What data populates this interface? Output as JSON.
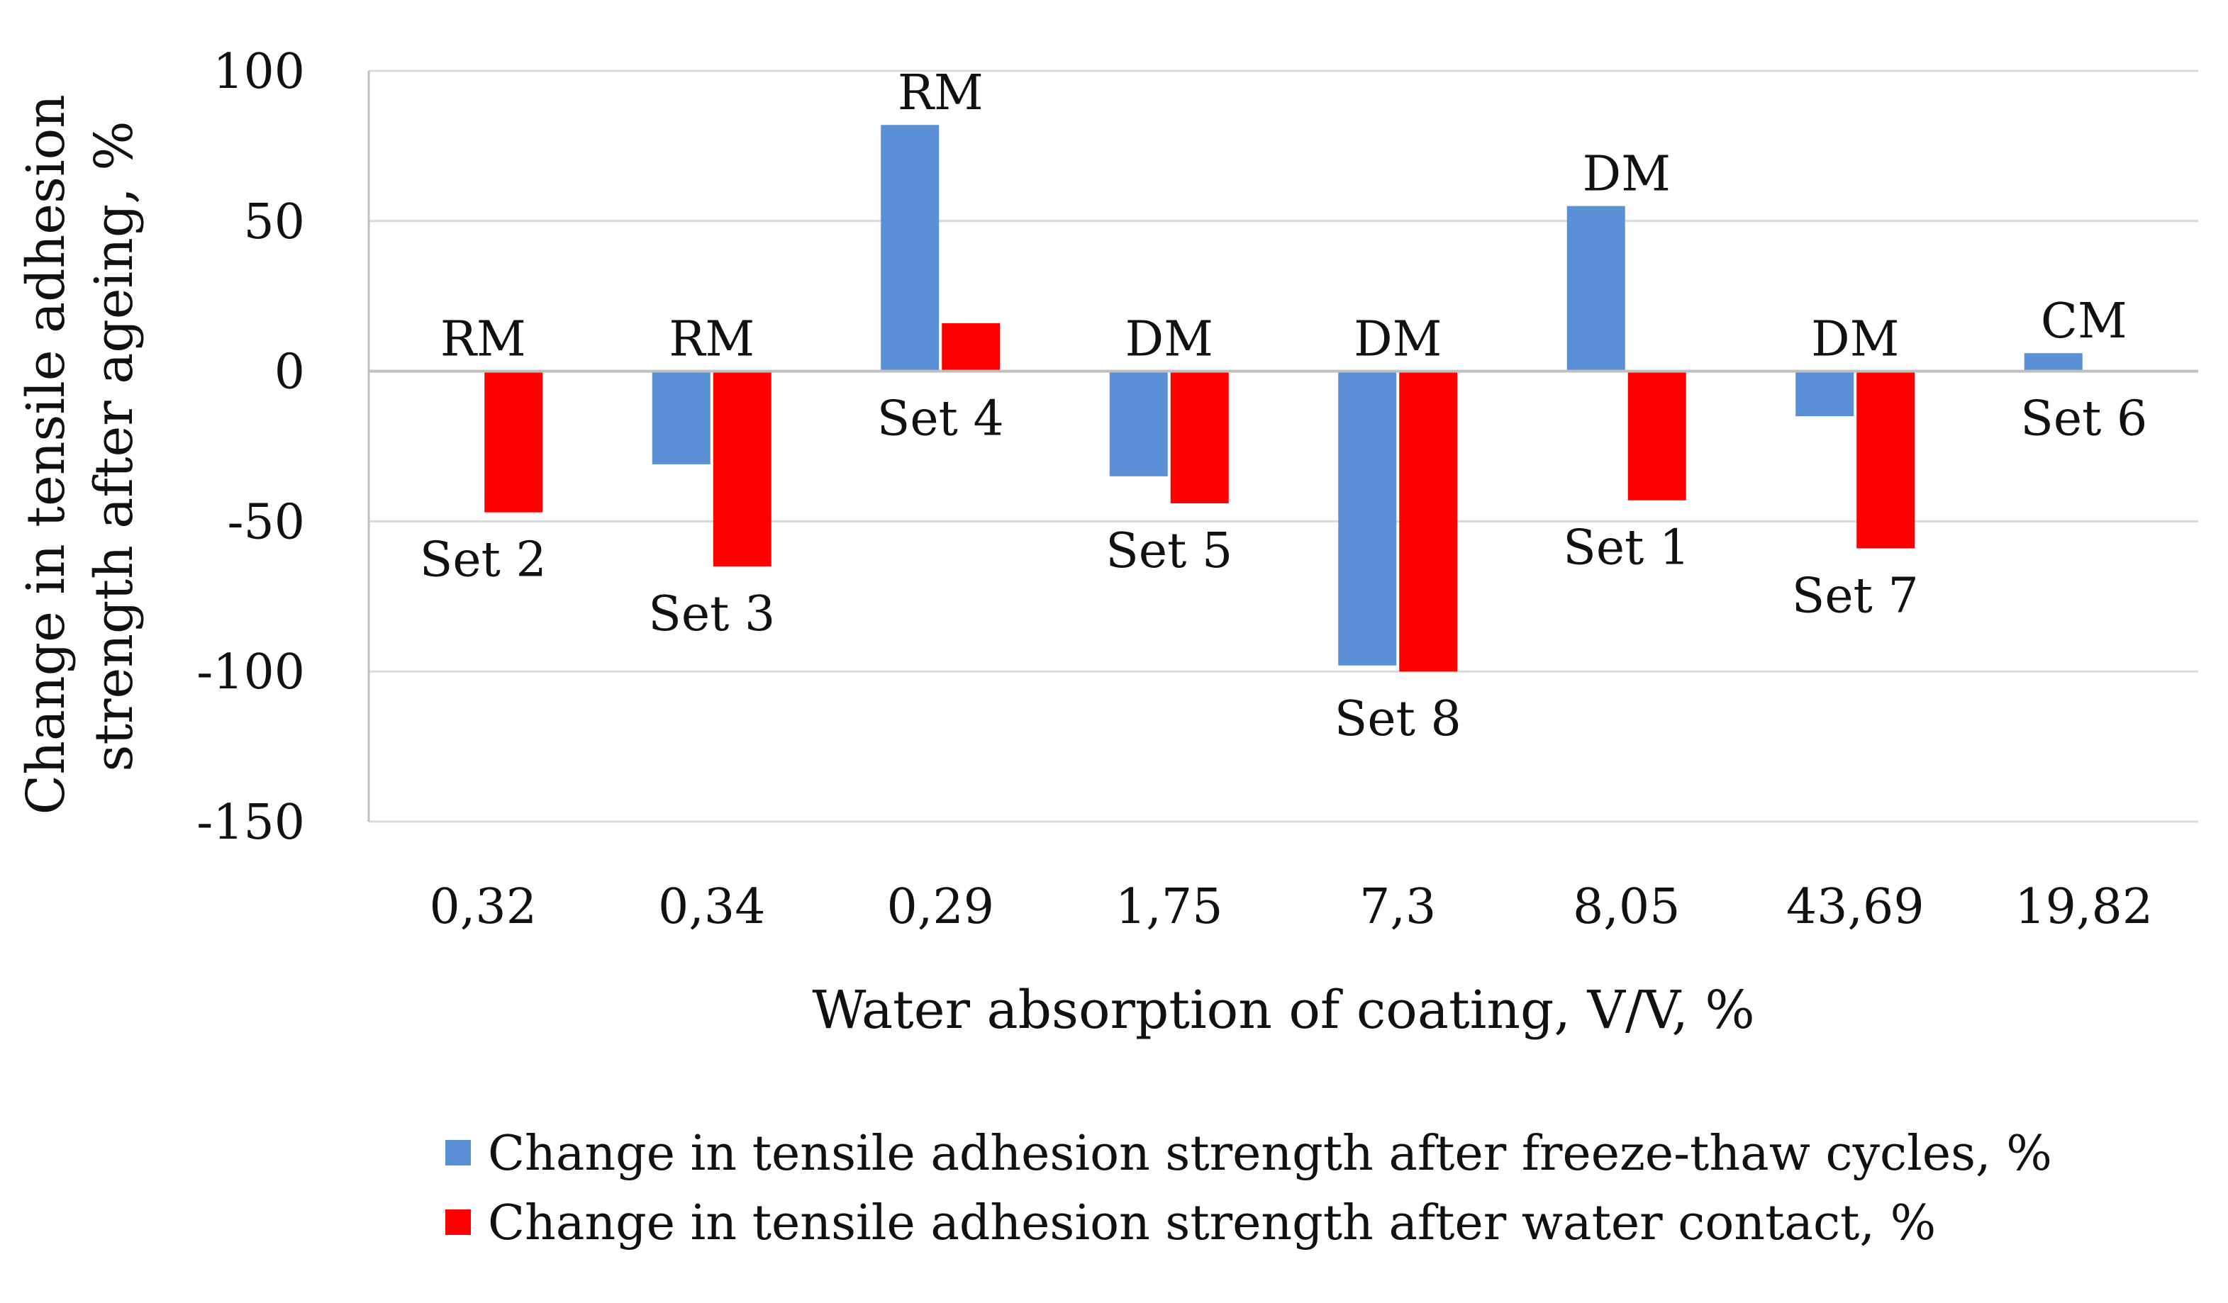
{
  "chart_data": {
    "type": "bar",
    "title": "",
    "xlabel": "Water absorption of coating, V/V, %",
    "ylabel_line1": "Change in tensile adhesion",
    "ylabel_line2": "strength after ageing, %",
    "ylim": [
      -150,
      100
    ],
    "yticks": [
      100,
      50,
      0,
      -50,
      -100,
      -150
    ],
    "ytick_labels": [
      "100",
      "50",
      "0",
      "-50",
      "-100",
      "-150"
    ],
    "grid": true,
    "legend_position": "bottom",
    "categories": [
      "0,32",
      "0,34",
      "0,29",
      "1,75",
      "7,3",
      "8,05",
      "43,69",
      "19,82"
    ],
    "series": [
      {
        "name": "Change in tensile adhesion strength after freeze-thaw cycles, %",
        "color": "#5b8fd6",
        "values": [
          null,
          -31,
          82,
          -35,
          -98,
          55,
          -15,
          6
        ]
      },
      {
        "name": "Change in tensile adhesion strength after water contact, %",
        "color": "#ff0000",
        "values": [
          -47,
          -65,
          16,
          -44,
          -100,
          -43,
          -59,
          null
        ]
      }
    ],
    "annotations": [
      {
        "category": 0,
        "top": "RM",
        "set": "Set 2"
      },
      {
        "category": 1,
        "top": "RM",
        "set": "Set 3"
      },
      {
        "category": 2,
        "top": "RM",
        "set": "Set 4"
      },
      {
        "category": 3,
        "top": "DM",
        "set": "Set 5"
      },
      {
        "category": 4,
        "top": "DM",
        "set": "Set 8"
      },
      {
        "category": 5,
        "top": "DM",
        "set": "Set 1"
      },
      {
        "category": 6,
        "top": "DM",
        "set": "Set 7"
      },
      {
        "category": 7,
        "top": "CM",
        "set": "Set 6"
      }
    ]
  }
}
